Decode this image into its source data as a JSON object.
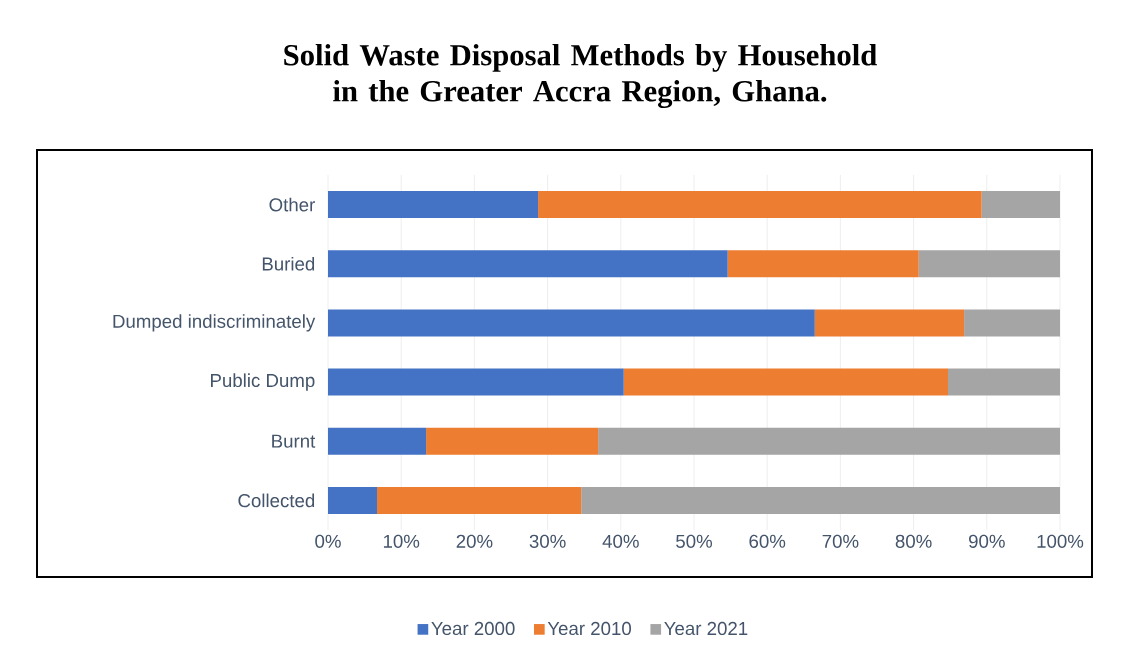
{
  "chart_data": {
    "type": "bar",
    "orientation": "horizontal",
    "stacked": true,
    "title": "Solid Waste Disposal Methods by Household in the Greater Accra Region, Ghana.",
    "categories": [
      "Other",
      "Buried",
      "Dumped indiscriminately",
      "Public Dump",
      "Burnt",
      "Collected"
    ],
    "series": [
      {
        "name": "Year 2000",
        "color": "#4472c4",
        "values": [
          28.7,
          54.6,
          66.5,
          40.4,
          13.4,
          6.7
        ]
      },
      {
        "name": "Year 2010",
        "color": "#ed7d31",
        "values": [
          60.6,
          26.1,
          20.4,
          44.3,
          23.5,
          27.9
        ]
      },
      {
        "name": "Year 2021",
        "color": "#a5a5a5",
        "values": [
          10.7,
          19.3,
          13.1,
          15.3,
          63.1,
          65.4
        ]
      }
    ],
    "xlim": [
      0,
      100
    ],
    "xticks": [
      {
        "value": 0,
        "label": "0%"
      },
      {
        "value": 10,
        "label": "10%"
      },
      {
        "value": 20,
        "label": "20%"
      },
      {
        "value": 30,
        "label": "30%"
      },
      {
        "value": 40,
        "label": "40%"
      },
      {
        "value": 50,
        "label": "50%"
      },
      {
        "value": 60,
        "label": "60%"
      },
      {
        "value": 70,
        "label": "70%"
      },
      {
        "value": 80,
        "label": "80%"
      },
      {
        "value": 90,
        "label": "90%"
      },
      {
        "value": 100,
        "label": "100%"
      }
    ],
    "grid": "x",
    "legend": "bottom"
  }
}
